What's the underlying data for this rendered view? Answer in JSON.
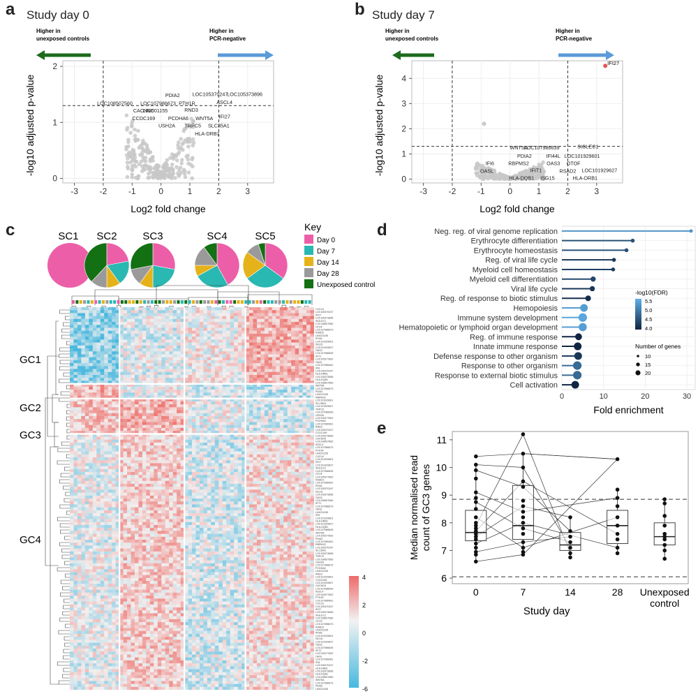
{
  "panels": {
    "a": {
      "letter": "a",
      "title": "Study day 0",
      "arrow_left": [
        "Higher in",
        "unexposed controls"
      ],
      "arrow_right": [
        "Higher in",
        "PCR-negative"
      ],
      "colors": {
        "left_arrow": "#1e6b1e",
        "right_arrow": "#5a9bd8",
        "points": "#c8c8c8"
      },
      "chart_data": {
        "type": "scatter",
        "xlabel": "Log2 fold change",
        "ylabel": "-log10 adjusted p-value",
        "xlim": [
          -3.4,
          3.9
        ],
        "ylim": [
          -0.08,
          2.1
        ],
        "xticks": [
          -3,
          -2,
          -1,
          0,
          1,
          2,
          3
        ],
        "yticks": [
          0,
          1,
          2
        ],
        "hline": 1.3,
        "vlines": [
          -2,
          2
        ],
        "labels": [
          {
            "text": "PDIA2",
            "x": 0.4,
            "y": 1.45
          },
          {
            "text": "LOC105370247",
            "x": 1.7,
            "y": 1.47
          },
          {
            "text": "LOC105373896",
            "x": 2.9,
            "y": 1.47
          },
          {
            "text": "LOC108507560",
            "x": -1.6,
            "y": 1.31
          },
          {
            "text": "LOC107986673",
            "x": -0.1,
            "y": 1.31
          },
          {
            "text": "PTH1R",
            "x": 0.9,
            "y": 1.31
          },
          {
            "text": "ASCL4",
            "x": 2.2,
            "y": 1.33
          },
          {
            "text": "CACNG5",
            "x": -0.6,
            "y": 1.18
          },
          {
            "text": "LINC01155",
            "x": -0.2,
            "y": 1.18
          },
          {
            "text": "RND3",
            "x": 1.05,
            "y": 1.19
          },
          {
            "text": "CCDC169",
            "x": -0.6,
            "y": 1.04
          },
          {
            "text": "PCDHA6",
            "x": 0.6,
            "y": 1.04
          },
          {
            "text": "WNT5A",
            "x": 1.5,
            "y": 1.04
          },
          {
            "text": "IFI27",
            "x": 2.2,
            "y": 1.07
          },
          {
            "text": "USH2A",
            "x": 0.2,
            "y": 0.91
          },
          {
            "text": "TRPC5",
            "x": 1.1,
            "y": 0.91
          },
          {
            "text": "SLC35A1",
            "x": 2.0,
            "y": 0.91
          },
          {
            "text": "HLA-DRB1",
            "x": 1.6,
            "y": 0.77
          }
        ]
      }
    },
    "b": {
      "letter": "b",
      "title": "Study day 7",
      "arrow_left": [
        "Higher in",
        "unexposed controls"
      ],
      "arrow_right": [
        "Higher in",
        "PCR-negative"
      ],
      "colors": {
        "left_arrow": "#1e6b1e",
        "right_arrow": "#5a9bd8",
        "points": "#c8c8c8",
        "highlight": "#e05555"
      },
      "chart_data": {
        "type": "scatter",
        "xlabel": "Log2 fold change",
        "ylabel": "-log10 adjusted p-value",
        "xlim": [
          -3.4,
          3.9
        ],
        "ylim": [
          -0.15,
          4.7
        ],
        "xticks": [
          -3,
          -2,
          -1,
          0,
          1,
          2,
          3
        ],
        "yticks": [
          0,
          1,
          2,
          3,
          4
        ],
        "hline": 1.3,
        "vlines": [
          -2,
          2
        ],
        "highlight": {
          "text": "IFI27",
          "x": 3.3,
          "y": 4.5
        },
        "outlier": {
          "x": -0.9,
          "y": 2.2
        },
        "labels": [
          {
            "text": "WNT5A",
            "x": 0.3,
            "y": 1.18
          },
          {
            "text": "LOC107986639",
            "x": 1.1,
            "y": 1.18
          },
          {
            "text": "SIGLEC1",
            "x": 2.7,
            "y": 1.22
          },
          {
            "text": "PDIA2",
            "x": 0.5,
            "y": 0.85
          },
          {
            "text": "IFI44L",
            "x": 1.5,
            "y": 0.85
          },
          {
            "text": "LOC101929601",
            "x": 2.5,
            "y": 0.85
          },
          {
            "text": "IFI6",
            "x": -0.7,
            "y": 0.55
          },
          {
            "text": "RBPMS2",
            "x": 0.3,
            "y": 0.55
          },
          {
            "text": "OAS3",
            "x": 1.5,
            "y": 0.55
          },
          {
            "text": "OTOF",
            "x": 2.2,
            "y": 0.55
          },
          {
            "text": "OASL",
            "x": -0.8,
            "y": 0.25
          },
          {
            "text": "IFIT1",
            "x": 0.9,
            "y": 0.28
          },
          {
            "text": "RSAD2",
            "x": 2.0,
            "y": 0.25
          },
          {
            "text": "LOC101929627",
            "x": 3.1,
            "y": 0.28
          },
          {
            "text": "HLA-DQB1",
            "x": 0.4,
            "y": -0.02
          },
          {
            "text": "ISG15",
            "x": 1.3,
            "y": -0.02
          },
          {
            "text": "HLA-DRB1",
            "x": 2.6,
            "y": -0.02
          }
        ]
      }
    },
    "c": {
      "letter": "c",
      "sample_clusters": [
        "SC1",
        "SC2",
        "SC3",
        "SC4",
        "SC5"
      ],
      "gene_clusters": [
        "GC1",
        "GC2",
        "GC3",
        "GC4"
      ],
      "key_title": "Key",
      "key": [
        {
          "label": "Day 0",
          "color": "#ec5fa8"
        },
        {
          "label": "Day 7",
          "color": "#2ab8b2"
        },
        {
          "label": "Day 14",
          "color": "#e6b219"
        },
        {
          "label": "Day 28",
          "color": "#9a9a9a"
        },
        {
          "label": "Unexposed control",
          "color": "#137013"
        }
      ],
      "pies": [
        {
          "name": "SC1",
          "values": [
            1.0,
            0,
            0,
            0,
            0
          ]
        },
        {
          "name": "SC2",
          "values": [
            0.22,
            0.18,
            0.1,
            0.12,
            0.38
          ]
        },
        {
          "name": "SC3",
          "values": [
            0.28,
            0.22,
            0.1,
            0.12,
            0.28
          ]
        },
        {
          "name": "SC4",
          "values": [
            0.42,
            0.25,
            0.08,
            0.15,
            0.1
          ]
        },
        {
          "name": "SC5",
          "values": [
            0.35,
            0.3,
            0.2,
            0.1,
            0.05
          ]
        }
      ],
      "colorbar": {
        "ticks": [
          "4",
          "2",
          "0",
          "-2",
          "-6"
        ],
        "high": "#ee6a6a",
        "mid": "#f2f2f2",
        "low": "#47b8df"
      },
      "row_labels_a": [
        "CXCL8",
        "IFI27",
        "SIGLEC1",
        "OTOF",
        "RSAD2",
        "IFI44L",
        "ISG15",
        "OAS3",
        "IFIT1",
        "OASL",
        "IFI6",
        "HLA-DRB1",
        "HLA-DQB1",
        "WNT5A",
        "PDIA2",
        "RBPMS2",
        "SLC35A1",
        "TRPC5",
        "USH2A",
        "PCDHA6",
        "RND3",
        "CCDC169",
        "CACNG5",
        "ASCL4",
        "PTH1R"
      ],
      "row_labels_b": [
        "LOC105370247",
        "LOC105373896",
        "LOC108507560",
        "LOC107986673",
        "LINC01155",
        "LOC101929601",
        "LOC101929627",
        "LOC107986639",
        "LOC105377802",
        "LOC107985461"
      ]
    },
    "d": {
      "letter": "d",
      "legend_fdr_title": "-log10(FDR)",
      "legend_fdr_ticks": [
        "5.5",
        "5.0",
        "4.5",
        "4.0"
      ],
      "legend_size_title": "Number of genes",
      "legend_size_ticks": [
        "10",
        "15",
        "20"
      ],
      "chart_data": {
        "type": "scatter",
        "xlabel": "Fold enrichment",
        "xlim": [
          0,
          32
        ],
        "xticks": [
          0,
          10,
          20,
          30
        ],
        "terms": [
          {
            "term": "Neg. reg. of viral genome replication",
            "fold": 31,
            "fdr": 5.2,
            "genes": 9
          },
          {
            "term": "Erythrocyte differentiation",
            "fold": 17,
            "fdr": 4.4,
            "genes": 10
          },
          {
            "term": "Erythrocyte homeostasis",
            "fold": 15.5,
            "fdr": 4.4,
            "genes": 10
          },
          {
            "term": "Reg. of viral life cycle",
            "fold": 12.5,
            "fdr": 4.1,
            "genes": 10
          },
          {
            "term": "Myeloid cell homeostasis",
            "fold": 12.3,
            "fdr": 4.2,
            "genes": 10
          },
          {
            "term": "Myeloid cell differentiation",
            "fold": 7.5,
            "fdr": 4.3,
            "genes": 13
          },
          {
            "term": "Viral life cycle",
            "fold": 7.3,
            "fdr": 4.1,
            "genes": 13
          },
          {
            "term": "Reg. of response to biotic stimulus",
            "fold": 6.3,
            "fdr": 4.0,
            "genes": 14
          },
          {
            "term": "Hemopoiesis",
            "fold": 5.3,
            "fdr": 5.3,
            "genes": 19
          },
          {
            "term": "Immune system development",
            "fold": 5.0,
            "fdr": 5.4,
            "genes": 21
          },
          {
            "term": "Hematopoietic or lymphoid organ development",
            "fold": 5.0,
            "fdr": 5.3,
            "genes": 20
          },
          {
            "term": "Reg. of immune response",
            "fold": 4.0,
            "fdr": 3.9,
            "genes": 17
          },
          {
            "term": "Innate immune response",
            "fold": 3.8,
            "fdr": 3.9,
            "genes": 19
          },
          {
            "term": "Defense response to other organism",
            "fold": 3.9,
            "fdr": 4.1,
            "genes": 19
          },
          {
            "term": "Response to other organism",
            "fold": 3.7,
            "fdr": 4.7,
            "genes": 21
          },
          {
            "term": "Response to external biotic stimulus",
            "fold": 3.7,
            "fdr": 4.7,
            "genes": 21
          },
          {
            "term": "Cell activation",
            "fold": 3.2,
            "fdr": 3.9,
            "genes": 19
          }
        ]
      }
    },
    "e": {
      "letter": "e",
      "chart_data": {
        "type": "box",
        "xlabel": "Study day",
        "ylabel": [
          "Median normalised read",
          "count of GC3 genes"
        ],
        "ylim": [
          5.8,
          11.3
        ],
        "yticks": [
          6,
          7,
          8,
          9,
          10,
          11
        ],
        "hlines": [
          8.85,
          6.05
        ],
        "categories": [
          "0",
          "7",
          "14",
          "28",
          "Unexposed\ncontrol"
        ],
        "boxes": [
          {
            "q1": 7.35,
            "median": 7.65,
            "q3": 8.45,
            "lo": 6.55,
            "hi": 10.15
          },
          {
            "q1": 7.4,
            "median": 7.9,
            "q3": 9.35,
            "lo": 6.8,
            "hi": 10.5
          },
          {
            "q1": 7.0,
            "median": 7.2,
            "q3": 7.65,
            "lo": 6.75,
            "hi": 8.2
          },
          {
            "q1": 7.25,
            "median": 7.9,
            "q3": 8.45,
            "lo": 6.9,
            "hi": 9.2
          },
          {
            "q1": 7.2,
            "median": 7.5,
            "q3": 8.0,
            "lo": 6.65,
            "hi": 8.85
          }
        ],
        "points": [
          [
            10.4,
            10.1,
            9.9,
            9.6,
            9.1,
            8.9,
            8.75,
            8.5,
            8.2,
            8.0,
            7.9,
            7.8,
            7.7,
            7.6,
            7.5,
            7.4,
            7.25,
            7.1,
            6.95,
            6.85,
            6.6
          ],
          [
            11.2,
            10.5,
            10.0,
            9.5,
            9.3,
            8.8,
            8.6,
            8.4,
            8.2,
            8.0,
            7.8,
            7.6,
            7.3,
            7.1,
            6.95,
            6.85
          ],
          [
            8.2,
            7.7,
            7.5,
            7.3,
            7.1,
            6.9,
            6.75
          ],
          [
            10.3,
            9.2,
            8.9,
            8.6,
            8.2,
            7.9,
            7.6,
            7.4,
            7.1,
            6.9
          ],
          [
            8.85,
            8.7,
            8.25,
            7.9,
            7.6,
            7.5,
            7.4,
            7.2,
            7.0,
            6.7
          ]
        ]
      }
    }
  }
}
